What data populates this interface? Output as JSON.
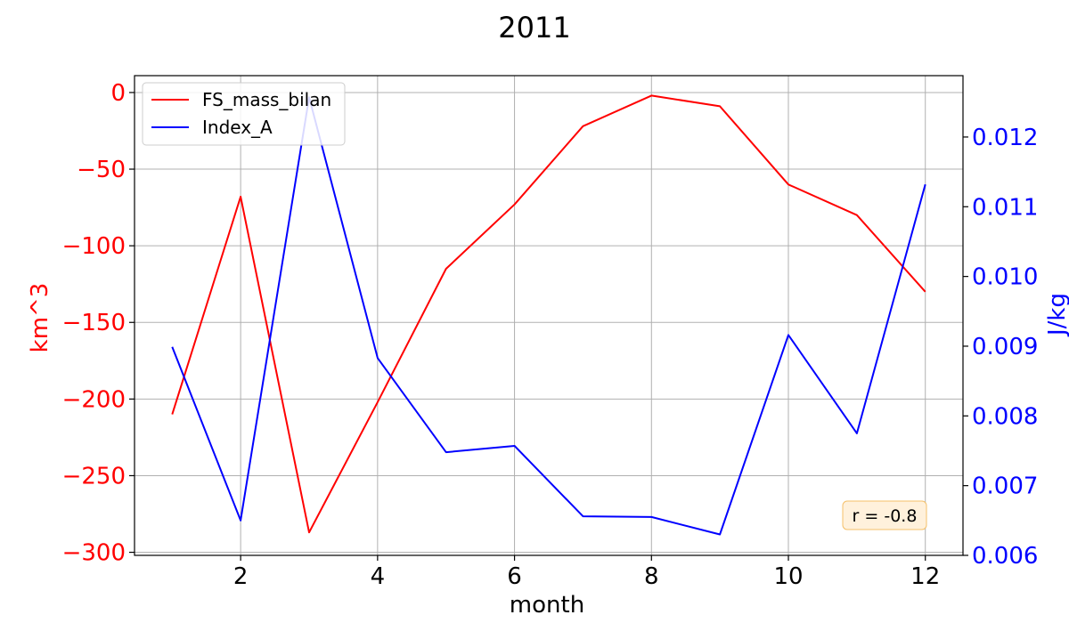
{
  "chart_data": {
    "type": "line",
    "title": "2011",
    "xlabel": "month",
    "ylabel_left": "km^3",
    "ylabel_right": "J/kg",
    "x": [
      1,
      2,
      3,
      4,
      5,
      6,
      7,
      8,
      9,
      10,
      11,
      12
    ],
    "x_ticks": [
      2,
      4,
      6,
      8,
      10,
      12
    ],
    "xlim": [
      0.45,
      12.55
    ],
    "left_axis": {
      "ylim": [
        -302,
        11
      ],
      "ticks": [
        0,
        -50,
        -100,
        -150,
        -200,
        -250,
        -300
      ],
      "tick_labels": [
        "0",
        "−50",
        "−100",
        "−150",
        "−200",
        "−250",
        "−300"
      ],
      "color": "#ff0000"
    },
    "right_axis": {
      "ylim": [
        0.006,
        0.01288
      ],
      "ticks": [
        0.006,
        0.007,
        0.008,
        0.009,
        0.01,
        0.011,
        0.012
      ],
      "tick_labels": [
        "0.006",
        "0.007",
        "0.008",
        "0.009",
        "0.010",
        "0.011",
        "0.012"
      ],
      "color": "#0000ff"
    },
    "series": [
      {
        "name": "FS_mass_bilan",
        "axis": "left",
        "color": "#ff0000",
        "values": [
          -210,
          -68,
          -287,
          -202,
          -115,
          -73,
          -22,
          -2,
          -9,
          -60,
          -80,
          -130
        ]
      },
      {
        "name": "Index_A",
        "axis": "right",
        "color": "#0000ff",
        "values": [
          0.00899,
          0.0065,
          0.01257,
          0.00883,
          0.00748,
          0.00757,
          0.00656,
          0.00655,
          0.0063,
          0.00916,
          0.00775,
          0.01132
        ]
      }
    ],
    "grid": true,
    "legend": "upper-left",
    "annotation": "r = -0.8",
    "annotation_colors": {
      "fill": "#fff1dc",
      "stroke": "#f5c06a"
    }
  }
}
